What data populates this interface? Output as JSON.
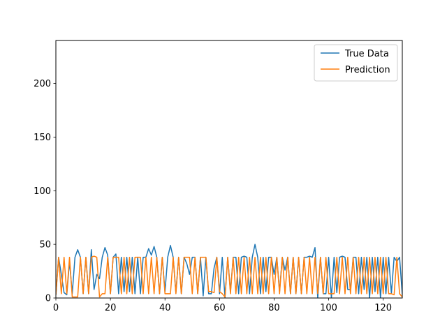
{
  "chart_data": {
    "type": "line",
    "title": "",
    "xlabel": "",
    "ylabel": "",
    "xlim": [
      0,
      127
    ],
    "ylim": [
      0,
      240
    ],
    "xticks": [
      0,
      20,
      40,
      60,
      80,
      100,
      120
    ],
    "yticks": [
      0,
      50,
      100,
      150,
      200
    ],
    "legend_position": "top-right",
    "grid": false,
    "series": [
      {
        "name": "True Data",
        "color": "#1f77b4",
        "values": [
          3,
          38,
          22,
          5,
          3,
          34,
          4,
          38,
          45,
          38,
          4,
          38,
          4,
          45,
          8,
          22,
          18,
          38,
          47,
          40,
          4,
          38,
          41,
          4,
          38,
          6,
          38,
          6,
          38,
          4,
          38,
          4,
          38,
          38,
          46,
          40,
          48,
          38,
          4,
          38,
          6,
          38,
          49,
          38,
          5,
          38,
          4,
          38,
          32,
          22,
          38,
          38,
          4,
          38,
          2,
          38,
          4,
          4,
          28,
          38,
          4,
          38,
          0,
          38,
          6,
          38,
          38,
          4,
          38,
          39,
          38,
          4,
          38,
          50,
          38,
          4,
          38,
          6,
          38,
          38,
          22,
          38,
          6,
          38,
          26,
          38,
          4,
          38,
          4,
          38,
          4,
          38,
          38,
          39,
          38,
          47,
          0,
          38,
          4,
          4,
          38,
          0,
          38,
          5,
          38,
          39,
          38,
          8,
          8,
          38,
          38,
          4,
          38,
          8,
          38,
          0,
          38,
          6,
          38,
          0,
          38,
          4,
          38,
          4,
          38,
          34,
          38,
          3
        ]
      },
      {
        "name": "Prediction",
        "color": "#ff7f0e",
        "values": [
          3,
          38,
          4,
          38,
          4,
          38,
          1,
          1,
          1,
          38,
          4,
          38,
          4,
          38,
          39,
          38,
          1,
          4,
          4,
          38,
          4,
          38,
          38,
          38,
          4,
          38,
          4,
          38,
          4,
          38,
          38,
          38,
          4,
          38,
          4,
          38,
          4,
          38,
          4,
          38,
          4,
          4,
          4,
          38,
          4,
          38,
          4,
          38,
          38,
          38,
          4,
          38,
          4,
          38,
          38,
          38,
          6,
          6,
          5,
          38,
          6,
          4,
          1,
          38,
          4,
          38,
          4,
          38,
          4,
          38,
          4,
          38,
          4,
          38,
          4,
          38,
          4,
          38,
          4,
          38,
          4,
          38,
          4,
          38,
          4,
          38,
          4,
          38,
          4,
          38,
          4,
          38,
          4,
          38,
          4,
          38,
          4,
          38,
          4,
          38,
          4,
          4,
          4,
          38,
          4,
          38,
          4,
          38,
          4,
          38,
          4,
          38,
          4,
          38,
          4,
          38,
          4,
          38,
          4,
          38,
          4,
          38,
          4,
          4,
          3,
          38,
          4,
          1
        ]
      }
    ]
  }
}
